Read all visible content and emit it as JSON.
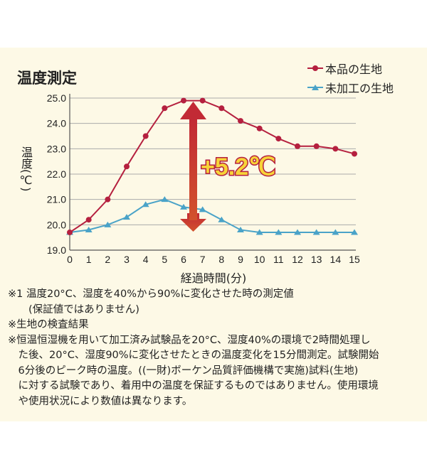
{
  "chart_data": {
    "type": "line",
    "title": "温度測定",
    "xlabel": "経過時間(分)",
    "ylabel": "温度(℃)",
    "x": [
      0,
      1,
      2,
      3,
      4,
      5,
      6,
      7,
      8,
      9,
      10,
      11,
      12,
      13,
      14,
      15
    ],
    "xlim": [
      0,
      15
    ],
    "ylim": [
      19.0,
      25.0
    ],
    "yticks": [
      "19.0",
      "20.0",
      "21.0",
      "22.0",
      "23.0",
      "24.0",
      "25.0"
    ],
    "grid": true,
    "legend_position": "top-right",
    "series": [
      {
        "name": "本品の生地",
        "color": "#b5203f",
        "marker": "circle",
        "values": [
          19.7,
          20.2,
          21.0,
          22.3,
          23.5,
          24.6,
          24.9,
          24.9,
          24.6,
          24.1,
          23.8,
          23.4,
          23.1,
          23.1,
          23.0,
          22.8
        ]
      },
      {
        "name": "未加工の生地",
        "color": "#4aa3c8",
        "marker": "triangle",
        "values": [
          19.7,
          19.8,
          20.0,
          20.3,
          20.8,
          21.0,
          20.7,
          20.6,
          20.2,
          19.8,
          19.7,
          19.7,
          19.7,
          19.7,
          19.7,
          19.7
        ]
      }
    ],
    "annotation": "+5.2℃"
  },
  "notes": [
    "※1 温度20°C、湿度を40%から90%に変化させた時の測定値",
    "　　(保証値ではありません)",
    "※生地の検査結果",
    "※恒温恒湿機を用いて加工済み試験品を20°C、湿度40%の環境で2時間処理し",
    "　た後、20°C、湿度90%に変化させたときの温度変化を15分間測定。試験開始",
    "　6分後のピーク時の温度。((一財)ボーケン品質評価機構で実施)試料(生地)",
    "　に対する試験であり、着用中の温度を保証するものではありません。使用環境",
    "　や使用状況により数値は異なります。"
  ]
}
